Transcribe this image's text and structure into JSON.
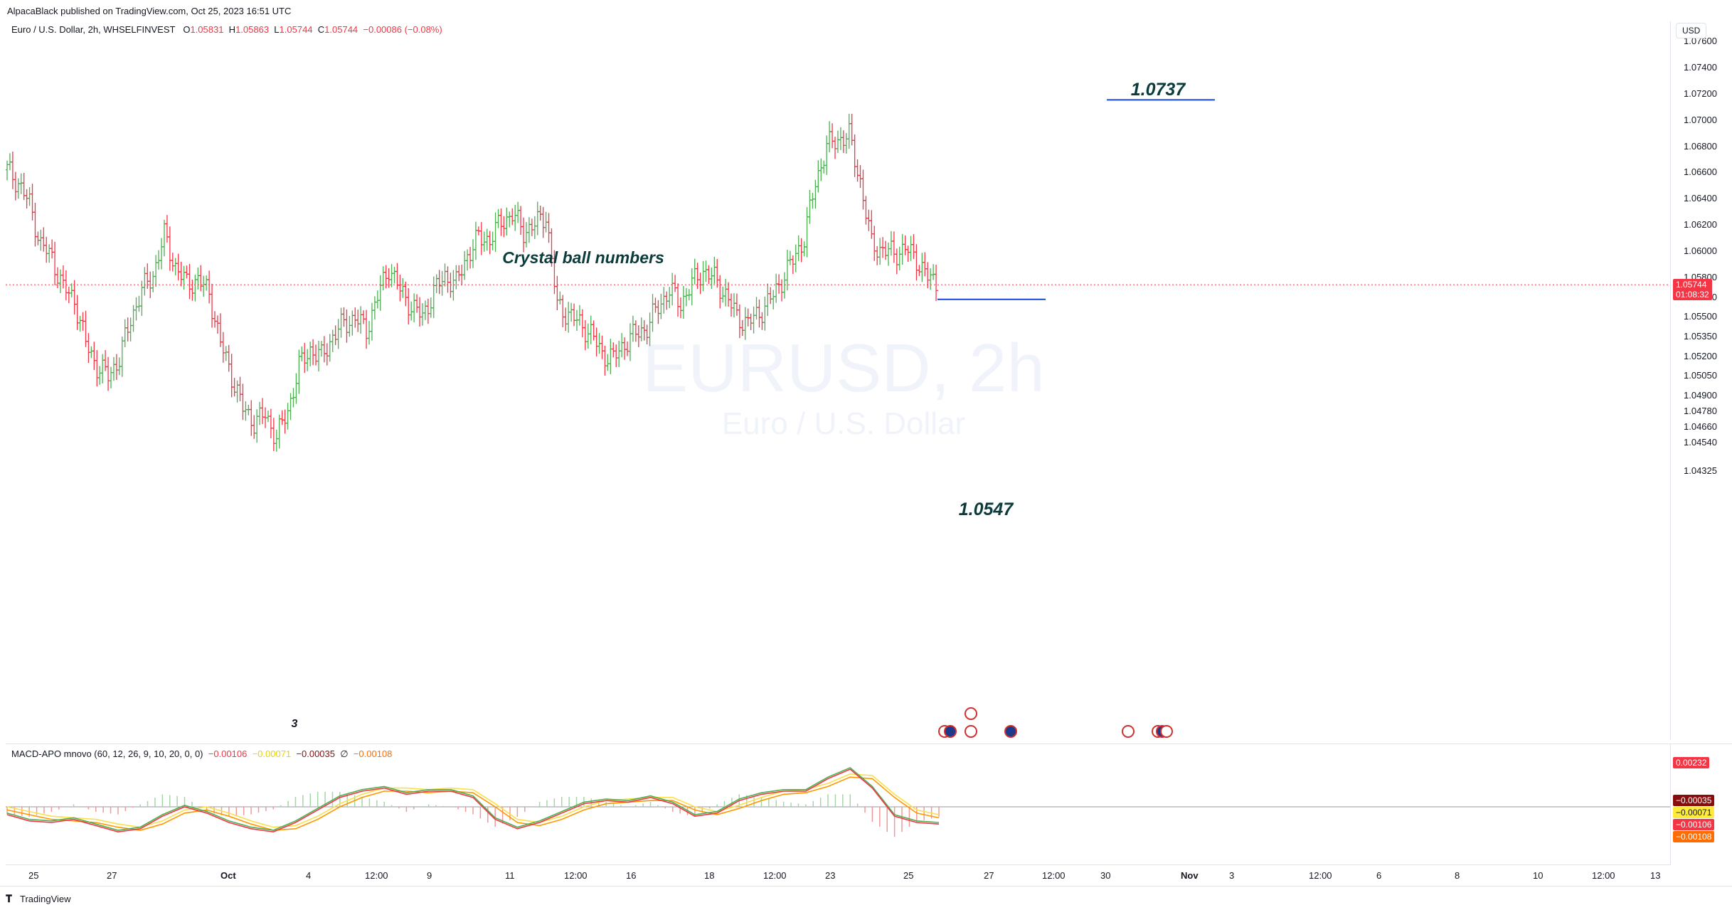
{
  "header": {
    "attribution": "AlpacaBlack published on TradingView.com, Oct 25, 2023 16:51 UTC"
  },
  "symbol": {
    "name": "Euro / U.S. Dollar, 2h, WHSELFINVEST",
    "open_label": "O",
    "open": "1.05831",
    "high_label": "H",
    "high": "1.05863",
    "low_label": "L",
    "low": "1.05744",
    "close_label": "C",
    "close": "1.05744",
    "change": "−0.00086 (−0.08%)"
  },
  "watermark": {
    "ticker": "EURUSD, 2h",
    "description": "Euro / U.S. Dollar"
  },
  "currency_button": "USD",
  "current_price": {
    "value": "1.05744",
    "countdown": "01:08:32",
    "color": "#f23645"
  },
  "colors": {
    "up": "#4caf50",
    "down": "#f23645",
    "annotation_line": "#1848cc",
    "annotation_text": "#0b3b3b"
  },
  "annotations": {
    "title": "Crystal ball numbers",
    "target_high": "1.0737",
    "target_low": "1.0547",
    "wave_label": "3"
  },
  "indicator": {
    "legend_name": "MACD-APO mnovo (60, 12, 26, 9, 10, 20, 0, 0)",
    "values": [
      {
        "text": "−0.00106",
        "color": "#f23645"
      },
      {
        "text": "−0.00071",
        "color": "#e6d400"
      },
      {
        "text": "−0.00035",
        "color": "#880e0e"
      },
      {
        "text": "∅",
        "color": "#131722"
      },
      {
        "text": "−0.00108",
        "color": "#ff6d00"
      }
    ],
    "axis_tags": [
      {
        "text": "0.00232",
        "bg": "#f23645"
      },
      {
        "text": "−0.00035",
        "bg": "#880e0e"
      },
      {
        "text": "−0.00071",
        "bg": "#ffeb3b",
        "fg": "#131722"
      },
      {
        "text": "−0.00106",
        "bg": "#f23645"
      },
      {
        "text": "−0.00108",
        "bg": "#ff6d00"
      }
    ]
  },
  "footer": {
    "brand": "TradingView"
  },
  "chart_data": {
    "type": "ohlc",
    "title": "Euro / U.S. Dollar, 2h",
    "y_ticks": [
      "1.07600",
      "1.07400",
      "1.07200",
      "1.07000",
      "1.06800",
      "1.06600",
      "1.06400",
      "1.06200",
      "1.06000",
      "1.05800",
      "1.05650",
      "1.05500",
      "1.05350",
      "1.05200",
      "1.05050",
      "1.04900",
      "1.04780",
      "1.04660",
      "1.04540",
      "1.04325"
    ],
    "ylim": [
      1.0425,
      1.0775
    ],
    "x_ticks": [
      "25",
      "27",
      "Oct",
      "4",
      "12:00",
      "9",
      "11",
      "12:00",
      "16",
      "18",
      "12:00",
      "23",
      "25",
      "27",
      "12:00",
      "30",
      "Nov",
      "3",
      "12:00",
      "6",
      "8",
      "10",
      "12:00",
      "13"
    ],
    "series": [
      {
        "name": "close",
        "values": [
          1.0662,
          1.0652,
          1.0636,
          1.0605,
          1.0595,
          1.0572,
          1.0563,
          1.053,
          1.0512,
          1.0505,
          1.0518,
          1.0548,
          1.057,
          1.0582,
          1.0612,
          1.0588,
          1.0575,
          1.0578,
          1.0568,
          1.053,
          1.0505,
          1.048,
          1.047,
          1.0475,
          1.0458,
          1.0478,
          1.0512,
          1.0525,
          1.0519,
          1.0535,
          1.0545,
          1.0549,
          1.054,
          1.0565,
          1.0588,
          1.057,
          1.0558,
          1.055,
          1.0569,
          1.0581,
          1.0575,
          1.0597,
          1.061,
          1.0609,
          1.0622,
          1.0628,
          1.0615,
          1.062,
          1.0628,
          1.0558,
          1.0552,
          1.0545,
          1.0537,
          1.0522,
          1.0518,
          1.053,
          1.0537,
          1.0542,
          1.0558,
          1.057,
          1.056,
          1.0575,
          1.0585,
          1.0579,
          1.0567,
          1.055,
          1.0545,
          1.0553,
          1.0563,
          1.0578,
          1.0593,
          1.061,
          1.0652,
          1.068,
          1.0685,
          1.0688,
          1.0653,
          1.0605,
          1.0601,
          1.0598,
          1.0602,
          1.0594,
          1.058,
          1.0574
        ]
      },
      {
        "name": "target_high",
        "values": [
          1.0737
        ]
      },
      {
        "name": "target_low",
        "values": [
          1.0547
        ]
      }
    ],
    "macd_lines": {
      "fast": [
        -0.0005,
        -0.0009,
        -0.001,
        -0.0008,
        -0.0012,
        -0.0016,
        -0.0014,
        -0.0006,
        0.0,
        -0.0004,
        -0.001,
        -0.0014,
        -0.0016,
        -0.001,
        -0.0002,
        0.0006,
        0.001,
        0.0012,
        0.0008,
        0.001,
        0.001,
        0.0006,
        -0.0008,
        -0.0014,
        -0.001,
        -0.0004,
        0.0002,
        0.0004,
        0.0003,
        0.0006,
        0.0002,
        -0.0006,
        -0.0004,
        0.0004,
        0.0008,
        0.001,
        0.001,
        0.0018,
        0.0024,
        0.0012,
        -0.0006,
        -0.001,
        -0.0011
      ],
      "signal": [
        -0.0002,
        -0.0005,
        -0.0008,
        -0.0009,
        -0.001,
        -0.0013,
        -0.0015,
        -0.0011,
        -0.0004,
        -0.0002,
        -0.0006,
        -0.0011,
        -0.0015,
        -0.0014,
        -0.0008,
        0.0,
        0.0006,
        0.001,
        0.001,
        0.0009,
        0.001,
        0.0009,
        0.0,
        -0.001,
        -0.0012,
        -0.0008,
        -0.0002,
        0.0002,
        0.0003,
        0.0004,
        0.0004,
        -0.0002,
        -0.0005,
        -0.0001,
        0.0004,
        0.0008,
        0.0009,
        0.0013,
        0.0019,
        0.0018,
        0.0006,
        -0.0004,
        -0.0007
      ]
    }
  }
}
